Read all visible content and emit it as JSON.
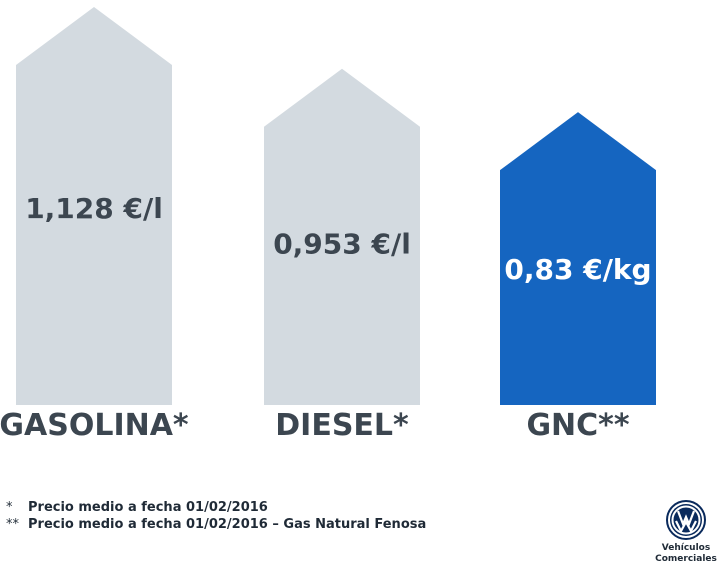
{
  "chart_data": {
    "type": "bar",
    "categories": [
      "GASOLINA*",
      "DIESEL*",
      "GNC**"
    ],
    "values": [
      1.128,
      0.953,
      0.83
    ],
    "value_labels": [
      "1,128 €/l",
      "0,953 €/l",
      "0,83 €/kg"
    ],
    "units": [
      "€/l",
      "€/l",
      "€/kg"
    ],
    "title": "",
    "xlabel": "",
    "ylabel": "",
    "ylim": [
      0,
      1.2
    ],
    "grid": false,
    "legend": "none",
    "bar_shape": "house-arrow",
    "colors": {
      "default_bar": "#d3dae0",
      "highlight_bar": "#1565c0",
      "default_label": "#3c4650",
      "highlight_label": "#ffffff",
      "category_label": "#3c4650"
    },
    "highlight_index": 2
  },
  "footnotes": [
    {
      "marker": "*",
      "text": "Precio medio a fecha 01/02/2016"
    },
    {
      "marker": "**",
      "text": "Precio medio a fecha 01/02/2016 – Gas Natural Fenosa"
    }
  ],
  "brand": {
    "logo_icon": "vw-logo-icon",
    "caption_line1": "Vehículos",
    "caption_line2": "Comerciales"
  }
}
